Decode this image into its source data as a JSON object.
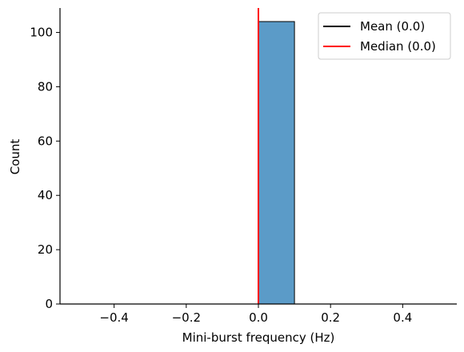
{
  "chart_data": {
    "type": "bar",
    "title": "",
    "xlabel": "Mini-burst frequency (Hz)",
    "ylabel": "Count",
    "xlim": [
      -0.55,
      0.55
    ],
    "ylim": [
      0,
      109
    ],
    "xticks": [
      -0.4,
      -0.2,
      0.0,
      0.2,
      0.4
    ],
    "xtick_labels": [
      "−0.4",
      "−0.2",
      "0.0",
      "0.2",
      "0.4"
    ],
    "yticks": [
      0,
      20,
      40,
      60,
      80,
      100
    ],
    "ytick_labels": [
      "0",
      "20",
      "40",
      "60",
      "80",
      "100"
    ],
    "bins": [
      {
        "x0": -0.5,
        "x1": -0.4,
        "count": 0
      },
      {
        "x0": -0.4,
        "x1": -0.3,
        "count": 0
      },
      {
        "x0": -0.3,
        "x1": -0.2,
        "count": 0
      },
      {
        "x0": -0.2,
        "x1": -0.1,
        "count": 0
      },
      {
        "x0": -0.1,
        "x1": 0.0,
        "count": 0
      },
      {
        "x0": 0.0,
        "x1": 0.1,
        "count": 104
      },
      {
        "x0": 0.1,
        "x1": 0.2,
        "count": 0
      },
      {
        "x0": 0.2,
        "x1": 0.3,
        "count": 0
      },
      {
        "x0": 0.3,
        "x1": 0.4,
        "count": 0
      },
      {
        "x0": 0.4,
        "x1": 0.5,
        "count": 0
      }
    ],
    "bar_color": "#5b9bc8",
    "vlines": [
      {
        "name": "Mean (0.0)",
        "x": 0.0,
        "color": "#000000"
      },
      {
        "name": "Median (0.0)",
        "x": 0.0,
        "color": "#ff0000"
      }
    ],
    "legend": {
      "position": "top-right",
      "entries": [
        "Mean (0.0)",
        "Median (0.0)"
      ]
    },
    "grid": false
  }
}
